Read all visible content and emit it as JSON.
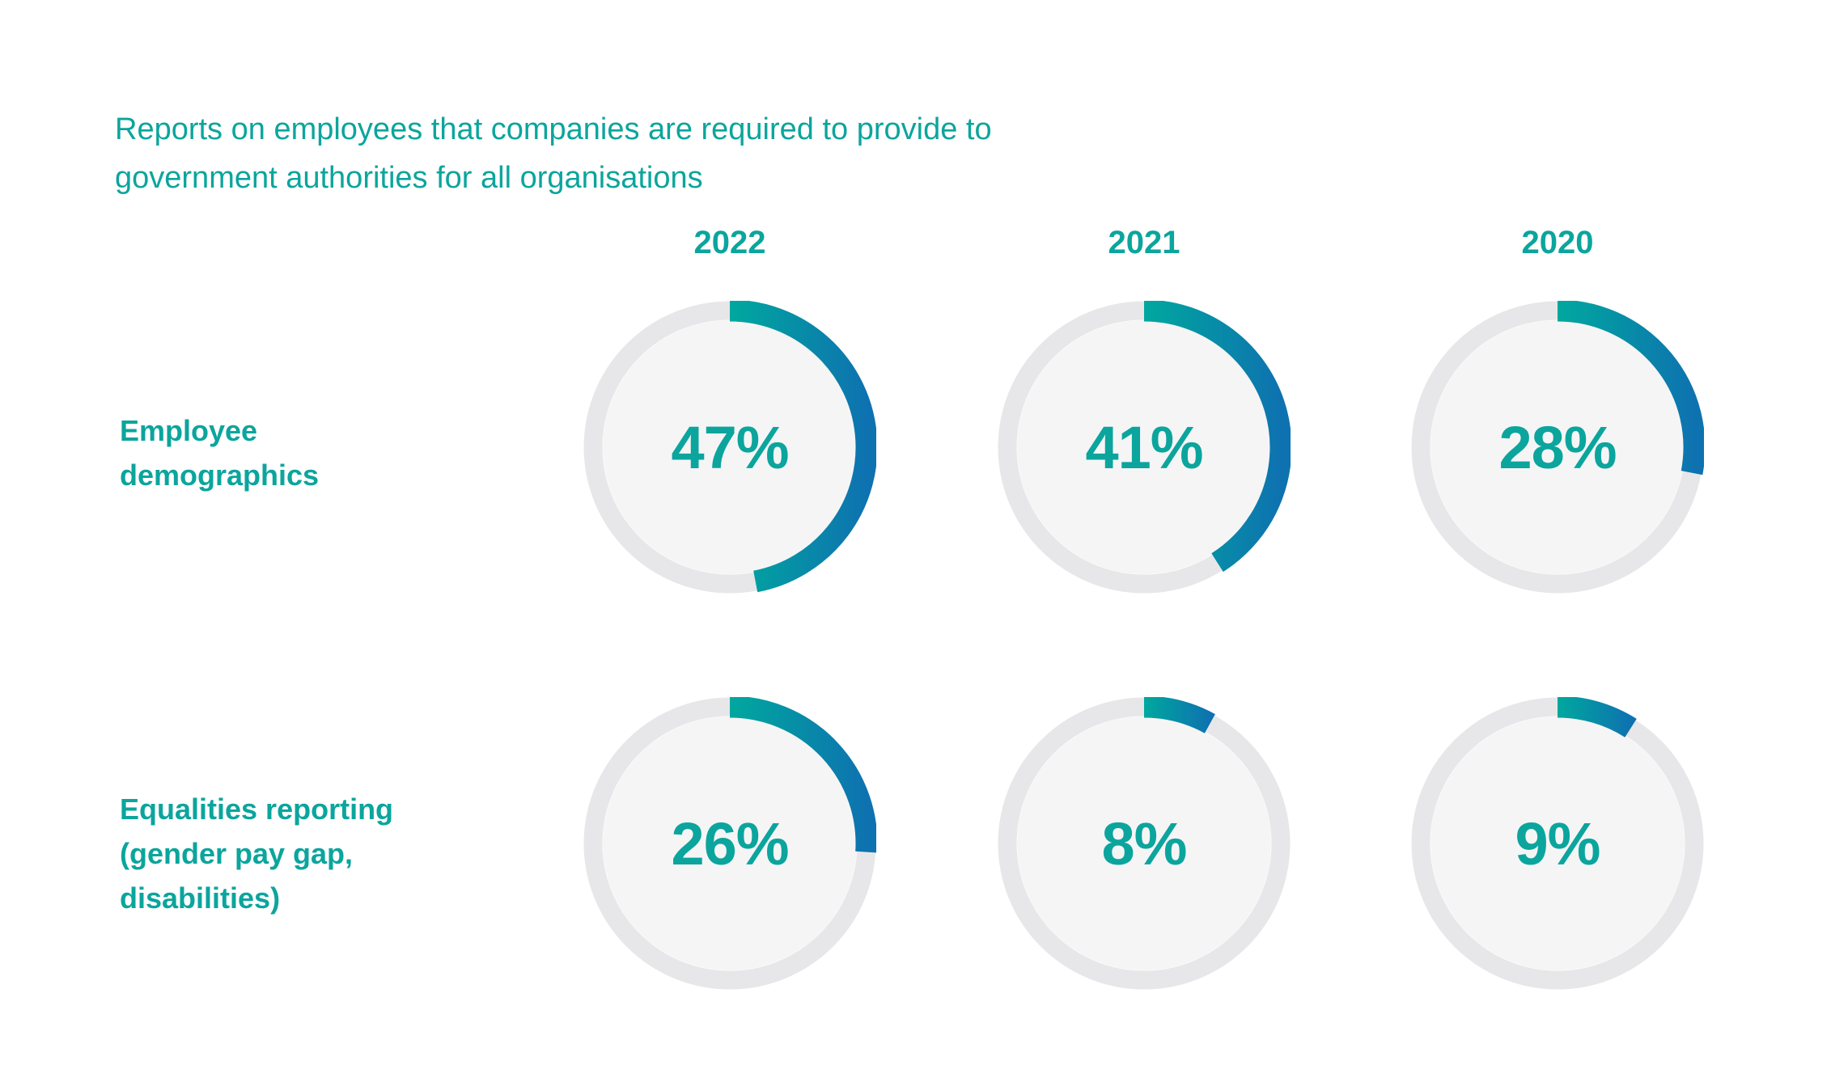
{
  "title": "Reports on employees that companies are required to provide to government authorities for all organisations",
  "title_lines": [
    "Reports on employees that companies are required to provide to",
    "government authorities for all organisations"
  ],
  "chart_data": {
    "type": "donut-grid",
    "title": "Reports on employees that companies are required to provide to government authorities for all organisations",
    "unit": "%",
    "columns": [
      "2022",
      "2021",
      "2020"
    ],
    "rows": [
      {
        "label": "Employee demographics",
        "label_lines": [
          "Employee",
          "demographics"
        ],
        "values": [
          47,
          41,
          28
        ]
      },
      {
        "label": "Equalities reporting (gender pay gap, disabilities)",
        "label_lines": [
          "Equalities reporting",
          "(gender pay gap,",
          "disabilities)"
        ],
        "values": [
          26,
          8,
          9
        ]
      }
    ],
    "arc_start_angle_deg": 0,
    "direction": "clockwise",
    "legend": "none",
    "colors": {
      "accent_teal": "#0BA59D",
      "arc_gradient_start": "#00A89E",
      "arc_gradient_end": "#0E72B0",
      "ring_track": "#E7E7E9",
      "ring_inner_fill": "#F5F5F6",
      "background": "#FFFFFF"
    }
  }
}
